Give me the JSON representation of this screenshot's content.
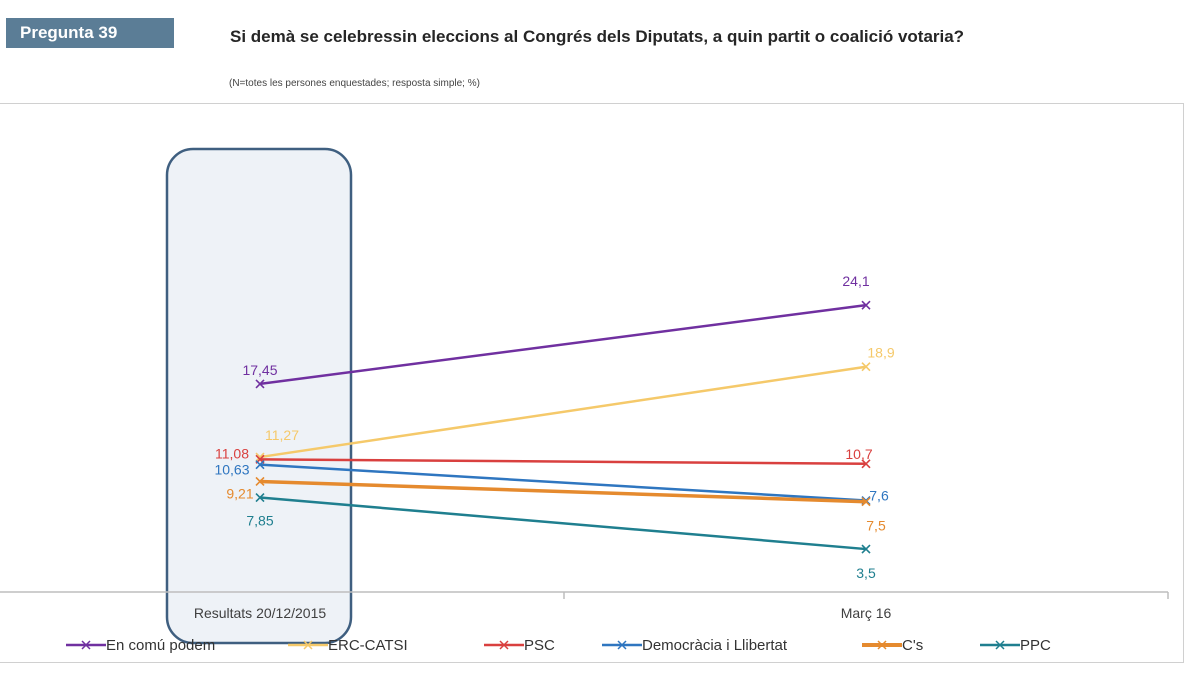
{
  "header": {
    "question_badge": "Pregunta 39",
    "title": "Si demà se celebressin eleccions al Congrés dels Diputats, a quin partit o coalició votaria?",
    "subtitle": "(N=totes les persones enquestades; resposta simple; %)"
  },
  "colors": {
    "badge_bg": "#5b7d96",
    "highlight_fill": "#eef2f7",
    "highlight_border": "#3f5f80"
  },
  "chart_data": {
    "type": "line",
    "title": "Si demà se celebressin eleccions al Congrés dels Diputats, a quin partit o coalició votaria?",
    "subtitle": "(N=totes les persones enquestades; resposta simple; %)",
    "xlabel": "",
    "ylabel": "%",
    "categories": [
      "Resultats 20/12/2015",
      "Març 16"
    ],
    "ylim": [
      0,
      30
    ],
    "grid": false,
    "legend_position": "bottom",
    "highlighted_category": "Resultats 20/12/2015",
    "series": [
      {
        "name": "En comú podem",
        "color": "#7030a0",
        "values": [
          17.45,
          24.1
        ],
        "labels": [
          "17,45",
          "24,1"
        ]
      },
      {
        "name": "ERC-CATSI",
        "color": "#f5c96a",
        "values": [
          11.27,
          18.9
        ],
        "labels": [
          "11,27",
          "18,9"
        ]
      },
      {
        "name": "PSC",
        "color": "#d9403f",
        "values": [
          11.08,
          10.7
        ],
        "labels": [
          "11,08",
          "10,7"
        ]
      },
      {
        "name": "Democràcia i Llibertat",
        "color": "#2f76c0",
        "values": [
          10.63,
          7.6
        ],
        "labels": [
          "10,63",
          "7,6"
        ]
      },
      {
        "name": "C's",
        "color": "#e58a2e",
        "values": [
          9.21,
          7.5
        ],
        "labels": [
          "9,21",
          "7,5"
        ]
      },
      {
        "name": "PPC",
        "color": "#1f7f8f",
        "values": [
          7.85,
          3.5
        ],
        "labels": [
          "7,85",
          "3,5"
        ]
      }
    ]
  }
}
